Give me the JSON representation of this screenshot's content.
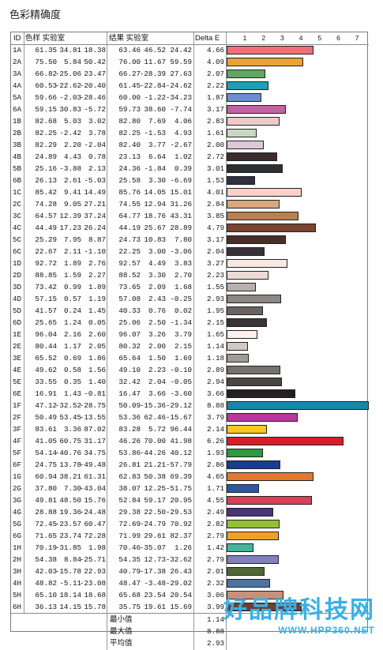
{
  "title": "色彩精确度",
  "headers": {
    "id": "ID",
    "target": "色样 实验室",
    "result": "结果 实验室",
    "delta": "Delta E"
  },
  "ticks": [
    "1",
    "2",
    "3",
    "4",
    "5",
    "6",
    "7"
  ],
  "summary": [
    {
      "label": "最小值",
      "value": "1.14"
    },
    {
      "label": "最大值",
      "value": "8.88"
    },
    {
      "label": "平均值",
      "value": "2.93"
    }
  ],
  "watermark": {
    "main": "好品牌科技网",
    "sub": "WWW.HPP360.NET"
  },
  "chart_data": {
    "type": "bar",
    "xlim": [
      0,
      7.6
    ],
    "columns": [
      "ID",
      "L",
      "a",
      "b",
      "L",
      "a",
      "b",
      "Delta E"
    ],
    "rows": [
      {
        "id": "1A",
        "t": [
          "61.35",
          "34.81",
          "18.38"
        ],
        "r": [
          "63.46",
          "46.52",
          "24.42"
        ],
        "de": 4.66,
        "color": "#ef6f78"
      },
      {
        "id": "2A",
        "t": [
          "75.50",
          "5.84",
          "50.42"
        ],
        "r": [
          "76.00",
          "11.67",
          "59.59"
        ],
        "de": 4.09,
        "color": "#e9a236"
      },
      {
        "id": "3A",
        "t": [
          "66.82",
          "-25.06",
          "23.47"
        ],
        "r": [
          "66.27",
          "-28.39",
          "27.63"
        ],
        "de": 2.07,
        "color": "#5ea862"
      },
      {
        "id": "4A",
        "t": [
          "60.53",
          "-22.62",
          "-20.40"
        ],
        "r": [
          "61.45",
          "-22.84",
          "-24.62"
        ],
        "de": 2.22,
        "color": "#1e9fb5"
      },
      {
        "id": "5A",
        "t": [
          "59.66",
          "-2.03",
          "-28.46"
        ],
        "r": [
          "60.00",
          "-1.22",
          "-34.23"
        ],
        "de": 1.87,
        "color": "#6d8fd0"
      },
      {
        "id": "6A",
        "t": [
          "59.15",
          "30.83",
          "-5.72"
        ],
        "r": [
          "59.73",
          "38.60",
          "-7.74"
        ],
        "de": 3.17,
        "color": "#c860a6"
      },
      {
        "id": "1B",
        "t": [
          "82.68",
          "5.03",
          "3.02"
        ],
        "r": [
          "82.80",
          "7.69",
          "4.06"
        ],
        "de": 2.83,
        "color": "#efc8c8"
      },
      {
        "id": "2B",
        "t": [
          "82.25",
          "-2.42",
          "3.78"
        ],
        "r": [
          "82.25",
          "-1.53",
          "4.93"
        ],
        "de": 1.61,
        "color": "#c8d8c0"
      },
      {
        "id": "3B",
        "t": [
          "82.29",
          "2.20",
          "-2.04"
        ],
        "r": [
          "82.40",
          "3.77",
          "-2.67"
        ],
        "de": 2.0,
        "color": "#dcc8d8"
      },
      {
        "id": "4B",
        "t": [
          "24.89",
          "4.43",
          "0.78"
        ],
        "r": [
          "23.13",
          "6.64",
          "1.02"
        ],
        "de": 2.72,
        "color": "#3c2c30"
      },
      {
        "id": "5B",
        "t": [
          "25.16",
          "-3.88",
          "2.13"
        ],
        "r": [
          "24.36",
          "-1.84",
          "0.39"
        ],
        "de": 3.01,
        "color": "#2c3030"
      },
      {
        "id": "6B",
        "t": [
          "26.13",
          "2.61",
          "-5.03"
        ],
        "r": [
          "25.58",
          "3.30",
          "-6.69"
        ],
        "de": 1.53,
        "color": "#2e3040"
      },
      {
        "id": "1C",
        "t": [
          "85.42",
          "9.41",
          "14.49"
        ],
        "r": [
          "85.76",
          "14.05",
          "15.01"
        ],
        "de": 4.01,
        "color": "#fbd0c8"
      },
      {
        "id": "2C",
        "t": [
          "74.28",
          "9.05",
          "27.21"
        ],
        "r": [
          "74.55",
          "12.94",
          "31.26"
        ],
        "de": 2.84,
        "color": "#d8a880"
      },
      {
        "id": "3C",
        "t": [
          "64.57",
          "12.39",
          "37.24"
        ],
        "r": [
          "64.77",
          "18.76",
          "43.31"
        ],
        "de": 3.85,
        "color": "#b88050"
      },
      {
        "id": "4C",
        "t": [
          "44.49",
          "17.23",
          "26.24"
        ],
        "r": [
          "44.19",
          "25.67",
          "28.89"
        ],
        "de": 4.79,
        "color": "#7a4430"
      },
      {
        "id": "5C",
        "t": [
          "25.29",
          "7.95",
          "8.87"
        ],
        "r": [
          "24.73",
          "10.83",
          "7.80"
        ],
        "de": 3.17,
        "color": "#4a2c28"
      },
      {
        "id": "6C",
        "t": [
          "22.67",
          "2.11",
          "-1.10"
        ],
        "r": [
          "22.25",
          "3.00",
          "-3.06"
        ],
        "de": 2.04,
        "color": "#38323a"
      },
      {
        "id": "1D",
        "t": [
          "92.72",
          "1.89",
          "2.76"
        ],
        "r": [
          "92.57",
          "4.49",
          "3.83"
        ],
        "de": 3.27,
        "color": "#f8e8e4"
      },
      {
        "id": "2D",
        "t": [
          "88.85",
          "1.59",
          "2.27"
        ],
        "r": [
          "88.52",
          "3.30",
          "2.70"
        ],
        "de": 2.23,
        "color": "#ecdcd8"
      },
      {
        "id": "3D",
        "t": [
          "73.42",
          "0.99",
          "1.89"
        ],
        "r": [
          "73.65",
          "2.09",
          "1.68"
        ],
        "de": 1.55,
        "color": "#b8b0ae"
      },
      {
        "id": "4D",
        "t": [
          "57.15",
          "0.57",
          "1.19"
        ],
        "r": [
          "57.08",
          "2.43",
          "-0.25"
        ],
        "de": 2.93,
        "color": "#8c8684"
      },
      {
        "id": "5D",
        "t": [
          "41.57",
          "0.24",
          "1.45"
        ],
        "r": [
          "40.33",
          "0.76",
          "0.02"
        ],
        "de": 1.95,
        "color": "#6a6462"
      },
      {
        "id": "6D",
        "t": [
          "25.65",
          "1.24",
          "0.05"
        ],
        "r": [
          "25.06",
          "2.50",
          "-1.34"
        ],
        "de": 2.15,
        "color": "#3a3436"
      },
      {
        "id": "1E",
        "t": [
          "96.04",
          "2.16",
          "2.60"
        ],
        "r": [
          "96.07",
          "3.26",
          "3.79"
        ],
        "de": 1.65,
        "color": "#fcf0ec"
      },
      {
        "id": "2E",
        "t": [
          "80.44",
          "1.17",
          "2.05"
        ],
        "r": [
          "80.32",
          "2.00",
          "2.15"
        ],
        "de": 1.14,
        "color": "#d0c8c6"
      },
      {
        "id": "3E",
        "t": [
          "65.52",
          "0.69",
          "1.86"
        ],
        "r": [
          "65.64",
          "1.50",
          "1.69"
        ],
        "de": 1.18,
        "color": "#a09a98"
      },
      {
        "id": "4E",
        "t": [
          "49.62",
          "0.58",
          "1.56"
        ],
        "r": [
          "49.10",
          "2.23",
          "-0.10"
        ],
        "de": 2.89,
        "color": "#767070"
      },
      {
        "id": "5E",
        "t": [
          "33.55",
          "0.35",
          "1.40"
        ],
        "r": [
          "32.42",
          "2.04",
          "-0.05"
        ],
        "de": 2.94,
        "color": "#4a4646"
      },
      {
        "id": "6E",
        "t": [
          "16.91",
          "1.43",
          "-0.81"
        ],
        "r": [
          "16.47",
          "3.66",
          "-3.60"
        ],
        "de": 3.66,
        "color": "#242022"
      },
      {
        "id": "1F",
        "t": [
          "47.12",
          "-32.52",
          "-28.75"
        ],
        "r": [
          "50.09",
          "-15.36",
          "-29.12"
        ],
        "de": 8.88,
        "color": "#1886a8"
      },
      {
        "id": "2F",
        "t": [
          "50.49",
          "53.45",
          "-13.55"
        ],
        "r": [
          "53.36",
          "62.46",
          "-15.67"
        ],
        "de": 3.79,
        "color": "#b8389a"
      },
      {
        "id": "3F",
        "t": [
          "83.61",
          "3.36",
          "87.02"
        ],
        "r": [
          "83.28",
          "5.72",
          "96.44"
        ],
        "de": 2.14,
        "color": "#f8c820"
      },
      {
        "id": "4F",
        "t": [
          "41.05",
          "60.75",
          "31.17"
        ],
        "r": [
          "46.26",
          "70.00",
          "41.98"
        ],
        "de": 6.26,
        "color": "#d81c2c"
      },
      {
        "id": "5F",
        "t": [
          "54.14",
          "-40.76",
          "34.75"
        ],
        "r": [
          "53.86",
          "-44.26",
          "40.12"
        ],
        "de": 1.93,
        "color": "#2c9a40"
      },
      {
        "id": "6F",
        "t": [
          "24.75",
          "13.78",
          "-49.48"
        ],
        "r": [
          "26.81",
          "21.21",
          "-57.79"
        ],
        "de": 2.86,
        "color": "#183c90"
      },
      {
        "id": "1G",
        "t": [
          "60.94",
          "38.21",
          "61.31"
        ],
        "r": [
          "62.83",
          "50.38",
          "69.39"
        ],
        "de": 4.65,
        "color": "#e27830"
      },
      {
        "id": "2G",
        "t": [
          "37.80",
          "7.30",
          "-43.04"
        ],
        "r": [
          "38.07",
          "12.25",
          "-51.75"
        ],
        "de": 1.71,
        "color": "#2a58a8"
      },
      {
        "id": "3G",
        "t": [
          "49.81",
          "48.50",
          "15.76"
        ],
        "r": [
          "52.84",
          "59.17",
          "20.95"
        ],
        "de": 4.55,
        "color": "#d84058"
      },
      {
        "id": "4G",
        "t": [
          "28.88",
          "19.36",
          "-24.48"
        ],
        "r": [
          "29.38",
          "22.50",
          "-29.53"
        ],
        "de": 2.49,
        "color": "#4a3478"
      },
      {
        "id": "5G",
        "t": [
          "72.45",
          "-23.57",
          "60.47"
        ],
        "r": [
          "72.69",
          "-24.79",
          "70.92"
        ],
        "de": 2.82,
        "color": "#94c038"
      },
      {
        "id": "6G",
        "t": [
          "71.65",
          "23.74",
          "72.28"
        ],
        "r": [
          "71.99",
          "29.61",
          "82.37"
        ],
        "de": 2.79,
        "color": "#f0a028"
      },
      {
        "id": "1H",
        "t": [
          "70.19",
          "-31.85",
          "1.98"
        ],
        "r": [
          "70.46",
          "-35.07",
          "1.26"
        ],
        "de": 1.42,
        "color": "#44b49c"
      },
      {
        "id": "2H",
        "t": [
          "54.38",
          "8.84",
          "-25.71"
        ],
        "r": [
          "54.35",
          "12.73",
          "-32.62"
        ],
        "de": 2.79,
        "color": "#8080bc"
      },
      {
        "id": "3H",
        "t": [
          "42.03",
          "-15.78",
          "22.93"
        ],
        "r": [
          "40.79",
          "-17.38",
          "26.43"
        ],
        "de": 2.01,
        "color": "#506834"
      },
      {
        "id": "4H",
        "t": [
          "48.82",
          "-5.11",
          "-23.08"
        ],
        "r": [
          "48.47",
          "-3.48",
          "-29.02"
        ],
        "de": 2.32,
        "color": "#4c74a0"
      },
      {
        "id": "5H",
        "t": [
          "65.10",
          "18.14",
          "18.68"
        ],
        "r": [
          "65.68",
          "23.54",
          "20.54"
        ],
        "de": 3.06,
        "color": "#c8907a"
      },
      {
        "id": "6H",
        "t": [
          "36.13",
          "14.15",
          "15.78"
        ],
        "r": [
          "35.75",
          "19.61",
          "15.69"
        ],
        "de": 3.99,
        "color": "#6c4030"
      }
    ]
  }
}
